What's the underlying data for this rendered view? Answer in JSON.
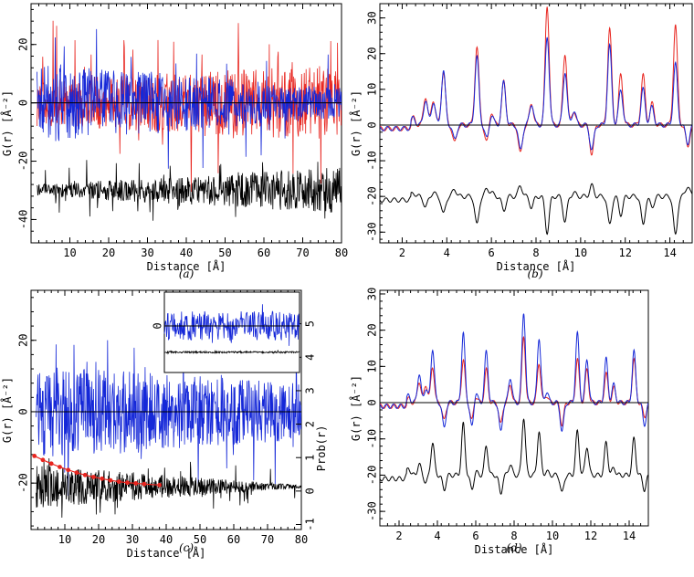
{
  "figure": {
    "background": "#ffffff",
    "colors": {
      "red": "#e8251f",
      "blue": "#1528d8",
      "black": "#000000"
    }
  },
  "chart_data": [
    {
      "id": "a",
      "panel_label": "(a)",
      "type": "line",
      "xlabel": "Distance [Å]",
      "ylabel": "G(r) [Å⁻²]",
      "xlim": [
        0,
        80
      ],
      "ylim": [
        -48,
        34
      ],
      "xticks": [
        10,
        20,
        30,
        40,
        50,
        60,
        70,
        80
      ],
      "yticks": [
        -40,
        -20,
        0,
        20
      ],
      "hline": 0,
      "series": [
        {
          "color": "red",
          "offset": 0,
          "x_range": [
            1.5,
            80
          ],
          "n": 680,
          "amplitude": [
            8,
            13
          ],
          "spike": 16,
          "seed": 3
        },
        {
          "color": "blue",
          "offset": 0,
          "x_range": [
            1.5,
            80
          ],
          "n": 680,
          "amplitude": [
            14,
            5
          ],
          "spike": 10,
          "seed": 7
        },
        {
          "color": "black",
          "offset": -30,
          "x_range": [
            1.5,
            80
          ],
          "n": 680,
          "amplitude": [
            2,
            8
          ],
          "spike": 6,
          "seed": 11
        }
      ]
    },
    {
      "id": "b",
      "panel_label": "(b)",
      "type": "line",
      "xlabel": "Distance [Å]",
      "ylabel": "G(r) [Å⁻²]",
      "xlim": [
        1,
        15
      ],
      "ylim": [
        -33,
        34
      ],
      "xticks": [
        2,
        4,
        6,
        8,
        10,
        12,
        14
      ],
      "yticks": [
        -30,
        -20,
        -10,
        0,
        10,
        20,
        30
      ],
      "hline": 0,
      "peaks": [
        {
          "x": 2.5,
          "red": 2,
          "blue": 2,
          "black": 1
        },
        {
          "x": 3.05,
          "red": 8,
          "blue": 7,
          "black": -3
        },
        {
          "x": 3.4,
          "red": 7,
          "blue": 6.5,
          "black": 1
        },
        {
          "x": 3.85,
          "red": 15,
          "blue": 15,
          "black": -5
        },
        {
          "x": 4.35,
          "red": -5,
          "blue": -4,
          "black": 2
        },
        {
          "x": 5.35,
          "red": 22,
          "blue": 19,
          "black": -8
        },
        {
          "x": 5.8,
          "red": -5,
          "blue": -4,
          "black": 2
        },
        {
          "x": 6.0,
          "red": 4,
          "blue": 3,
          "black": 1
        },
        {
          "x": 6.55,
          "red": 12,
          "blue": 12,
          "black": -4
        },
        {
          "x": 7.3,
          "red": -8,
          "blue": -7,
          "black": 3
        },
        {
          "x": 7.8,
          "red": 6,
          "blue": 6,
          "black": -3
        },
        {
          "x": 8.5,
          "red": 33,
          "blue": 25,
          "black": -10
        },
        {
          "x": 9.3,
          "red": 20,
          "blue": 15,
          "black": -7
        },
        {
          "x": 9.7,
          "red": 4,
          "blue": 4,
          "black": 1
        },
        {
          "x": 10.5,
          "red": -8,
          "blue": -7,
          "black": 3
        },
        {
          "x": 11.3,
          "red": 27,
          "blue": 22,
          "black": -8
        },
        {
          "x": 11.8,
          "red": 14,
          "blue": 10,
          "black": -5
        },
        {
          "x": 12.8,
          "red": 14,
          "blue": 10,
          "black": -8
        },
        {
          "x": 13.2,
          "red": 6,
          "blue": 5,
          "black": -3
        },
        {
          "x": 14.25,
          "red": 28,
          "blue": 17,
          "black": -11
        },
        {
          "x": 14.8,
          "red": -6,
          "blue": -5,
          "black": 3
        }
      ],
      "black_offset": -20
    },
    {
      "id": "c",
      "panel_label": "(c)",
      "type": "line",
      "xlabel": "Distance [Å]",
      "ylabel": "G(r) [Å⁻²]",
      "y2label": "Prob(r)",
      "xlim": [
        0,
        80
      ],
      "ylim": [
        -33,
        34
      ],
      "xticks": [
        10,
        20,
        30,
        40,
        50,
        60,
        70,
        80
      ],
      "yticks": [
        -20,
        0,
        20
      ],
      "y2lim": [
        -1.15,
        6.0
      ],
      "y2ticks": [
        -1,
        0,
        1,
        2,
        3,
        4,
        5
      ],
      "hline": 0,
      "series": [
        {
          "color": "blue",
          "offset": 0,
          "x_range": [
            1.5,
            80
          ],
          "n": 680,
          "amplitude": [
            13,
            8
          ],
          "spike": 9,
          "seed": 5
        },
        {
          "color": "black",
          "offset": -21,
          "x_range": [
            1.5,
            80
          ],
          "n": 680,
          "amplitude": [
            6,
            0.4
          ],
          "spike": 4,
          "seed": 13
        }
      ],
      "prob_points": {
        "color": "red",
        "x": [
          1,
          3.5,
          6,
          8.5,
          11,
          13.5,
          16,
          18.5,
          21,
          23.5,
          26,
          28.5,
          31,
          33.5,
          38
        ],
        "y": [
          1.05,
          0.93,
          0.82,
          0.72,
          0.63,
          0.55,
          0.48,
          0.42,
          0.37,
          0.32,
          0.28,
          0.25,
          0.23,
          0.21,
          0.18
        ]
      },
      "inset": {
        "series": [
          {
            "color": "blue",
            "offset": 0,
            "n": 300,
            "amplitude": [
              10,
              10
            ],
            "spike": 6,
            "seed": 17
          },
          {
            "color": "black",
            "offset": -18,
            "n": 300,
            "amplitude": [
              0.6,
              0.6
            ],
            "spike": 0.5,
            "seed": 19
          }
        ]
      }
    },
    {
      "id": "d",
      "panel_label": "(d)",
      "type": "line",
      "xlabel": "Distance [Å]",
      "ylabel": "G(r) [Å⁻²]",
      "xlim": [
        1,
        15
      ],
      "ylim": [
        -34,
        31
      ],
      "xticks": [
        2,
        4,
        6,
        8,
        10,
        12,
        14
      ],
      "yticks": [
        -30,
        -20,
        -10,
        0,
        10,
        20,
        30
      ],
      "hline": 0,
      "peaks": [
        {
          "x": 2.5,
          "red": 1,
          "blue": 2,
          "black": 2
        },
        {
          "x": 3.05,
          "red": 6,
          "blue": 8,
          "black": 3
        },
        {
          "x": 3.4,
          "red": 5,
          "blue": 4,
          "black": -2
        },
        {
          "x": 3.75,
          "red": 10,
          "blue": 15,
          "black": 9
        },
        {
          "x": 4.35,
          "red": -5,
          "blue": -7,
          "black": -4
        },
        {
          "x": 5.35,
          "red": 12,
          "blue": 19,
          "black": 14
        },
        {
          "x": 5.8,
          "red": -5,
          "blue": -7,
          "black": -4
        },
        {
          "x": 6.0,
          "red": 2,
          "blue": 3,
          "black": 1
        },
        {
          "x": 6.55,
          "red": 9,
          "blue": 14,
          "black": 8
        },
        {
          "x": 7.3,
          "red": -6,
          "blue": -8,
          "black": -5
        },
        {
          "x": 7.8,
          "red": 5,
          "blue": 7,
          "black": 3
        },
        {
          "x": 8.5,
          "red": 18,
          "blue": 25,
          "black": 16
        },
        {
          "x": 9.3,
          "red": 11,
          "blue": 18,
          "black": 12
        },
        {
          "x": 9.7,
          "red": 2,
          "blue": 3,
          "black": 1
        },
        {
          "x": 10.5,
          "red": -6,
          "blue": -8,
          "black": -5
        },
        {
          "x": 11.3,
          "red": 12,
          "blue": 19,
          "black": 12
        },
        {
          "x": 11.8,
          "red": 9,
          "blue": 12,
          "black": 8
        },
        {
          "x": 12.8,
          "red": 8,
          "blue": 12,
          "black": 9
        },
        {
          "x": 13.2,
          "red": 4,
          "blue": 5,
          "black": 2
        },
        {
          "x": 14.25,
          "red": 12,
          "blue": 14,
          "black": 10
        },
        {
          "x": 14.8,
          "red": -4,
          "blue": -6,
          "black": -4
        }
      ],
      "black_offset": -20
    }
  ]
}
